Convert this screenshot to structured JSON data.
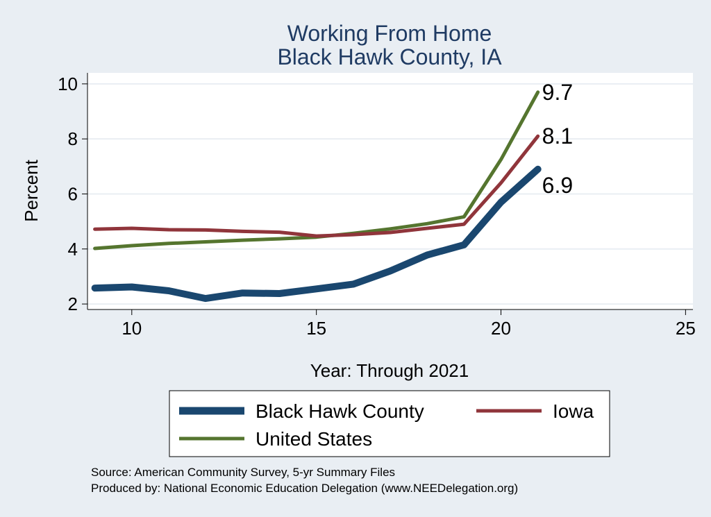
{
  "chart_data": {
    "type": "line",
    "title": "Working From Home",
    "subtitle": "Black Hawk County, IA",
    "xlabel": "Year: Through 2021",
    "ylabel": "Percent",
    "xlim": [
      8.8,
      25.2
    ],
    "ylim": [
      1.8,
      10.4
    ],
    "xticks": [
      10,
      15,
      20,
      25
    ],
    "yticks": [
      2,
      4,
      6,
      8,
      10
    ],
    "grid": true,
    "legend_position": "bottom",
    "x": [
      9,
      10,
      11,
      12,
      13,
      14,
      15,
      16,
      17,
      18,
      19,
      20,
      21
    ],
    "series": [
      {
        "name": "Black Hawk County",
        "color": "#1a476f",
        "values": [
          2.58,
          2.62,
          2.48,
          2.2,
          2.4,
          2.38,
          2.55,
          2.72,
          3.2,
          3.78,
          4.15,
          5.7,
          6.9
        ],
        "end_label": "6.9"
      },
      {
        "name": "Iowa",
        "color": "#90353b",
        "values": [
          4.72,
          4.75,
          4.7,
          4.69,
          4.64,
          4.61,
          4.47,
          4.52,
          4.6,
          4.75,
          4.9,
          6.4,
          8.1
        ],
        "end_label": "8.1"
      },
      {
        "name": "United States",
        "color": "#55752f",
        "values": [
          4.02,
          4.12,
          4.2,
          4.26,
          4.32,
          4.37,
          4.43,
          4.57,
          4.73,
          4.92,
          5.17,
          7.25,
          9.7
        ],
        "end_label": "9.7"
      }
    ]
  },
  "notes": [
    "Source: American Community Survey, 5-yr Summary Files",
    "Produced by: National Economic Education Delegation (www.NEEDelegation.org)"
  ]
}
